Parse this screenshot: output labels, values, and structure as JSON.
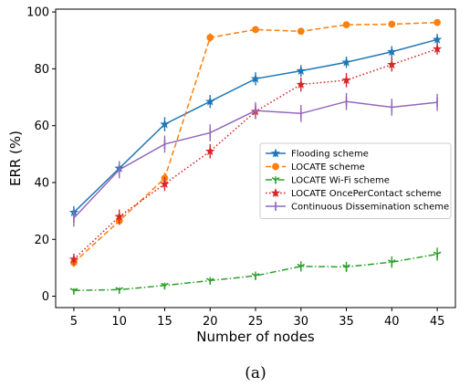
{
  "chart_data": {
    "type": "line",
    "title": "",
    "xlabel": "Number of nodes",
    "ylabel": "ERR (%)",
    "caption": "(a)",
    "x": [
      5,
      10,
      15,
      20,
      25,
      30,
      35,
      40,
      45
    ],
    "xlim": [
      3,
      47
    ],
    "ylim": [
      -4,
      101
    ],
    "xticks": [
      5,
      10,
      15,
      20,
      25,
      30,
      35,
      40,
      45
    ],
    "yticks": [
      0,
      20,
      40,
      60,
      80,
      100
    ],
    "grid": false,
    "legend_position": "center-right",
    "series": [
      {
        "name": "Flooding scheme",
        "color": "#1f77b4",
        "linestyle": "solid",
        "marker": "star",
        "values": [
          29.5,
          45,
          60.5,
          68.5,
          76.5,
          79.3,
          82.3,
          86,
          90.3
        ],
        "errors": [
          2.2,
          2.5,
          2.5,
          2.3,
          2.3,
          2.0,
          2.0,
          2.0,
          2.0
        ]
      },
      {
        "name": "LOCATE scheme",
        "color": "#ff7f0e",
        "linestyle": "dashed",
        "marker": "circle",
        "values": [
          11.8,
          26.5,
          41.5,
          91,
          93.8,
          93.2,
          95.5,
          95.7,
          96.3
        ],
        "errors": [
          1.5,
          1.5,
          2.0,
          1.5,
          1.0,
          1.0,
          0.8,
          0.8,
          0.8
        ]
      },
      {
        "name": "LOCATE Wi-Fi scheme",
        "color": "#2ca02c",
        "linestyle": "dashdot",
        "marker": "tri_down",
        "values": [
          2.0,
          2.3,
          3.8,
          5.5,
          7.2,
          10.5,
          10.3,
          12.0,
          14.8
        ],
        "errors": [
          0.8,
          0.8,
          1.0,
          1.2,
          1.5,
          1.8,
          1.8,
          2.0,
          2.3
        ]
      },
      {
        "name": "LOCATE OncePerContact scheme",
        "color": "#d62728",
        "linestyle": "dotted",
        "marker": "star",
        "values": [
          13,
          28,
          39.5,
          51,
          65,
          74.5,
          76,
          81.5,
          87
        ],
        "errors": [
          2.0,
          2.5,
          2.5,
          2.5,
          2.5,
          2.5,
          2.5,
          2.5,
          2.0
        ]
      },
      {
        "name": "Continuous Dissemination scheme",
        "color": "#9467bd",
        "linestyle": "solid",
        "marker": "vline",
        "values": [
          27.5,
          44.5,
          53.5,
          57.5,
          65.3,
          64.3,
          68.5,
          66.5,
          68.2
        ],
        "errors": [
          3.0,
          3.0,
          3.0,
          3.0,
          3.0,
          3.0,
          3.0,
          3.0,
          3.0
        ]
      }
    ]
  }
}
